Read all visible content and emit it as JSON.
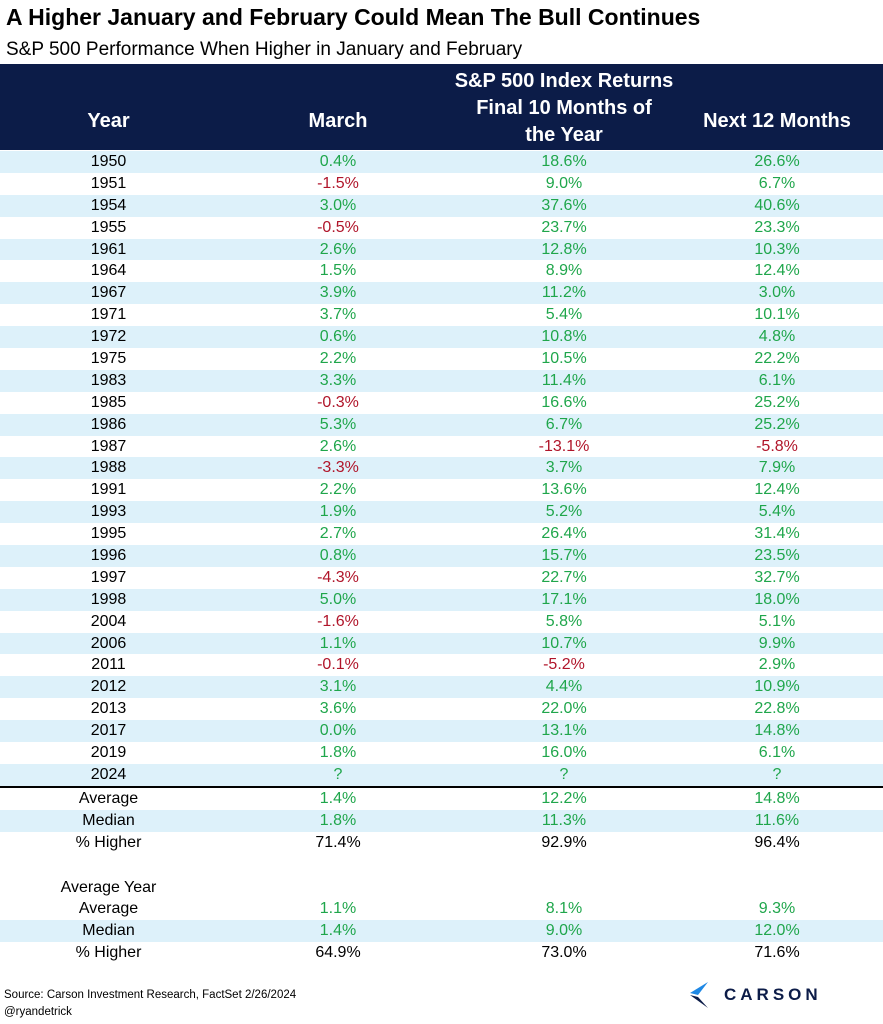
{
  "title": "A Higher January and February Could Mean The Bull Continues",
  "subtitle": "S&P 500 Performance When Higher in January and February",
  "header": {
    "year": "Year",
    "march": "March",
    "group_line1": "S&P 500 Index Returns",
    "group_line2": "Final 10 Months of",
    "group_line3": "the Year",
    "next12": "Next 12 Months"
  },
  "chart_data": {
    "type": "table",
    "columns": [
      "Year",
      "March",
      "Final 10 Months of the Year",
      "Next 12 Months"
    ],
    "rows": [
      [
        "1950",
        "0.4%",
        "18.6%",
        "26.6%"
      ],
      [
        "1951",
        "-1.5%",
        "9.0%",
        "6.7%"
      ],
      [
        "1954",
        "3.0%",
        "37.6%",
        "40.6%"
      ],
      [
        "1955",
        "-0.5%",
        "23.7%",
        "23.3%"
      ],
      [
        "1961",
        "2.6%",
        "12.8%",
        "10.3%"
      ],
      [
        "1964",
        "1.5%",
        "8.9%",
        "12.4%"
      ],
      [
        "1967",
        "3.9%",
        "11.2%",
        "3.0%"
      ],
      [
        "1971",
        "3.7%",
        "5.4%",
        "10.1%"
      ],
      [
        "1972",
        "0.6%",
        "10.8%",
        "4.8%"
      ],
      [
        "1975",
        "2.2%",
        "10.5%",
        "22.2%"
      ],
      [
        "1983",
        "3.3%",
        "11.4%",
        "6.1%"
      ],
      [
        "1985",
        "-0.3%",
        "16.6%",
        "25.2%"
      ],
      [
        "1986",
        "5.3%",
        "6.7%",
        "25.2%"
      ],
      [
        "1987",
        "2.6%",
        "-13.1%",
        "-5.8%"
      ],
      [
        "1988",
        "-3.3%",
        "3.7%",
        "7.9%"
      ],
      [
        "1991",
        "2.2%",
        "13.6%",
        "12.4%"
      ],
      [
        "1993",
        "1.9%",
        "5.2%",
        "5.4%"
      ],
      [
        "1995",
        "2.7%",
        "26.4%",
        "31.4%"
      ],
      [
        "1996",
        "0.8%",
        "15.7%",
        "23.5%"
      ],
      [
        "1997",
        "-4.3%",
        "22.7%",
        "32.7%"
      ],
      [
        "1998",
        "5.0%",
        "17.1%",
        "18.0%"
      ],
      [
        "2004",
        "-1.6%",
        "5.8%",
        "5.1%"
      ],
      [
        "2006",
        "1.1%",
        "10.7%",
        "9.9%"
      ],
      [
        "2011",
        "-0.1%",
        "-5.2%",
        "2.9%"
      ],
      [
        "2012",
        "3.1%",
        "4.4%",
        "10.9%"
      ],
      [
        "2013",
        "3.6%",
        "22.0%",
        "22.8%"
      ],
      [
        "2017",
        "0.0%",
        "13.1%",
        "14.8%"
      ],
      [
        "2019",
        "1.8%",
        "16.0%",
        "6.1%"
      ],
      [
        "2024",
        "?",
        "?",
        "?"
      ]
    ],
    "summary": [
      [
        "Average",
        "1.4%",
        "12.2%",
        "14.8%"
      ],
      [
        "Median",
        "1.8%",
        "11.3%",
        "11.6%"
      ],
      [
        "% Higher",
        "71.4%",
        "92.9%",
        "96.4%"
      ]
    ],
    "average_year_label": "Average Year",
    "average_year": [
      [
        "Average",
        "1.1%",
        "8.1%",
        "9.3%"
      ],
      [
        "Median",
        "1.4%",
        "9.0%",
        "12.0%"
      ],
      [
        "% Higher",
        "64.9%",
        "73.0%",
        "71.6%"
      ]
    ]
  },
  "colors": {
    "header_bg": "#0c1c48",
    "row_shade": "#ddf1fa",
    "positive": "#1fa64b",
    "negative": "#b0152a",
    "logo_blue": "#1e88e5"
  },
  "footer": {
    "source": "Source: Carson Investment Research, FactSet 2/26/2024",
    "handle": "@ryandetrick",
    "logo_text": "CARSON"
  }
}
